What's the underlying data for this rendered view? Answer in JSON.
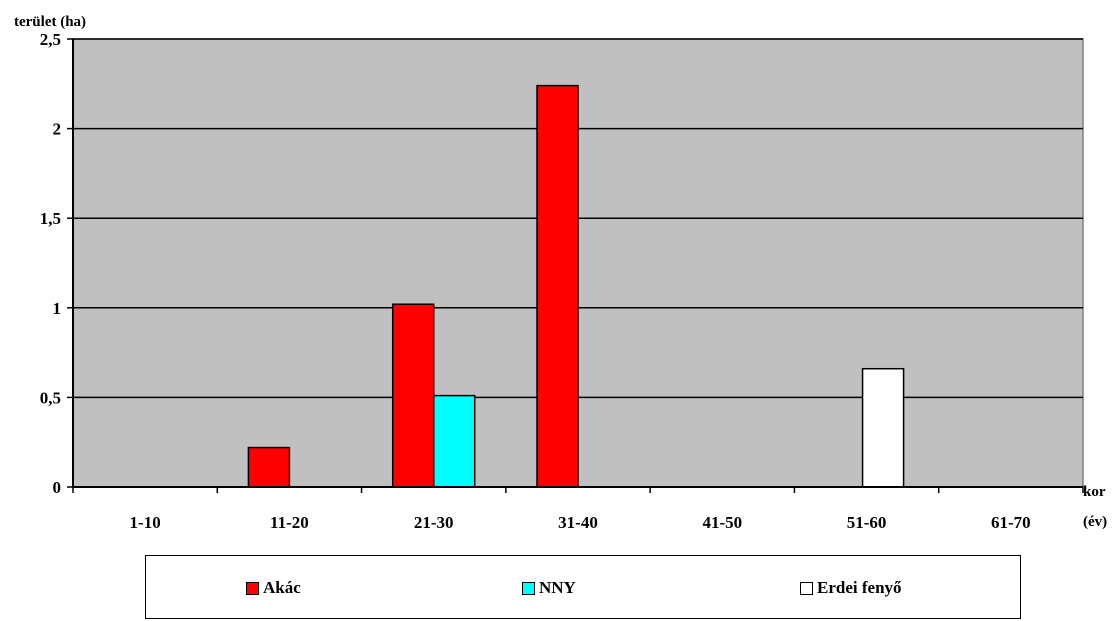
{
  "chart_data": {
    "type": "bar",
    "ylabel": "terület (ha)",
    "xlabel_line1": "kor",
    "xlabel_line2": "(év)",
    "categories": [
      "1-10",
      "11-20",
      "21-30",
      "31-40",
      "41-50",
      "51-60",
      "61-70"
    ],
    "ylim": [
      0,
      2.5
    ],
    "yticks": [
      {
        "value": 0,
        "label": "0"
      },
      {
        "value": 0.5,
        "label": "0,5"
      },
      {
        "value": 1,
        "label": "1"
      },
      {
        "value": 1.5,
        "label": "1,5"
      },
      {
        "value": 2,
        "label": "2"
      },
      {
        "value": 2.5,
        "label": "2,5"
      }
    ],
    "grid": true,
    "legend_position": "bottom",
    "plot_background": "#c0c0c0",
    "series": [
      {
        "name": "Akác",
        "color": "#ff0000",
        "values": [
          0,
          0.22,
          1.02,
          2.24,
          0,
          0,
          0
        ]
      },
      {
        "name": "NNY",
        "color": "#00ffff",
        "values": [
          0,
          0,
          0.51,
          0,
          0,
          0,
          0
        ]
      },
      {
        "name": "Erdei fenyő",
        "color": "#ffffff",
        "values": [
          0,
          0,
          0,
          0,
          0,
          0.66,
          0
        ]
      }
    ]
  }
}
